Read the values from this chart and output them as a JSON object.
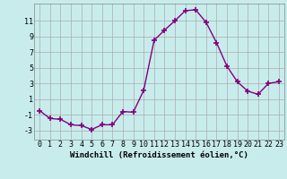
{
  "x": [
    0,
    1,
    2,
    3,
    4,
    5,
    6,
    7,
    8,
    9,
    10,
    11,
    12,
    13,
    14,
    15,
    16,
    17,
    18,
    19,
    20,
    21,
    22,
    23
  ],
  "y": [
    -0.5,
    -1.5,
    -1.6,
    -2.3,
    -2.4,
    -2.9,
    -2.3,
    -2.3,
    -0.6,
    -0.7,
    2.1,
    8.5,
    9.8,
    11.0,
    12.3,
    12.4,
    10.8,
    8.2,
    5.2,
    3.2,
    2.0,
    1.6,
    3.0,
    3.2
  ],
  "line_color": "#800080",
  "marker": "+",
  "markersize": 4,
  "markeredgewidth": 1.2,
  "linewidth": 1.0,
  "bg_color": "#c8ecec",
  "grid_color": "#aaaaaa",
  "xlabel": "Windchill (Refroidissement éolien,°C)",
  "xlabel_fontsize": 6.5,
  "tick_fontsize": 6.0,
  "xlim": [
    -0.5,
    23.5
  ],
  "ylim": [
    -4.2,
    13.2
  ],
  "yticks": [
    -3,
    -1,
    1,
    3,
    5,
    7,
    9,
    11
  ],
  "xticks": [
    0,
    1,
    2,
    3,
    4,
    5,
    6,
    7,
    8,
    9,
    10,
    11,
    12,
    13,
    14,
    15,
    16,
    17,
    18,
    19,
    20,
    21,
    22,
    23
  ]
}
